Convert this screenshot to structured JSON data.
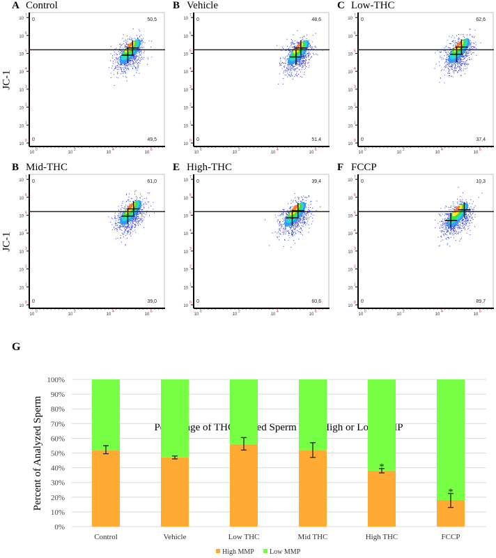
{
  "figure_labels": {
    "g": "G"
  },
  "flow_panels": [
    {
      "letter": "A",
      "title": "Control",
      "ylabel": "JC-1",
      "q_ul": "0",
      "q_ur": "50,5",
      "q_ll": "0",
      "q_lr": "49,5"
    },
    {
      "letter": "B",
      "title": "Vehicle",
      "ylabel": "",
      "q_ul": "0",
      "q_ur": "48,6",
      "q_ll": "0",
      "q_lr": "51,4"
    },
    {
      "letter": "C",
      "title": "Low-THC",
      "ylabel": "",
      "q_ul": "0",
      "q_ur": "62,6",
      "q_ll": "0",
      "q_lr": "37,4"
    },
    {
      "letter": "B",
      "title": "Mid-THC",
      "ylabel": "JC-1",
      "q_ul": "0",
      "q_ur": "61,0",
      "q_ll": "0",
      "q_lr": "39,0"
    },
    {
      "letter": "E",
      "title": "High-THC",
      "ylabel": "",
      "q_ul": "0",
      "q_ur": "39,4",
      "q_ll": "0",
      "q_lr": "60,6"
    },
    {
      "letter": "F",
      "title": "FCCP",
      "ylabel": "",
      "q_ul": "0",
      "q_ur": "10,3",
      "q_ll": "0",
      "q_lr": "89,7"
    }
  ],
  "flow_axis": {
    "x_ticks": [
      "0",
      "2",
      "4",
      "6"
    ],
    "y_ticks": [
      "0",
      "1",
      "2",
      "3",
      "4",
      "5",
      "6",
      "7"
    ],
    "base": "10"
  },
  "chart_data": {
    "type": "bar",
    "stacked": true,
    "title": "Percentage of THC-treated Sperm With High or Low MMP",
    "xlabel": "",
    "ylabel": "Percent of Analyzed Sperm",
    "ylim": [
      0,
      100
    ],
    "yticks": [
      "0%",
      "10%",
      "20%",
      "30%",
      "40%",
      "50%",
      "60%",
      "70%",
      "80%",
      "90%",
      "100%"
    ],
    "grid": true,
    "legend_position": "bottom",
    "categories": [
      "Control",
      "Vehicle",
      "Low THC",
      "Mid THC",
      "High THC",
      "FCCP"
    ],
    "series": [
      {
        "name": "High MMP",
        "color": "#ffaa33",
        "values": [
          52,
          47,
          56,
          52,
          38,
          18
        ],
        "error_low": [
          49.5,
          46,
          52,
          47,
          36.5,
          13
        ],
        "error_high": [
          55,
          48,
          60.5,
          57,
          39.5,
          22.5
        ]
      },
      {
        "name": "Low MMP",
        "color": "#77ff44",
        "values": [
          48,
          53,
          44,
          48,
          62,
          82
        ]
      }
    ],
    "significance": [
      "",
      "",
      "",
      "",
      "*",
      "*"
    ]
  }
}
